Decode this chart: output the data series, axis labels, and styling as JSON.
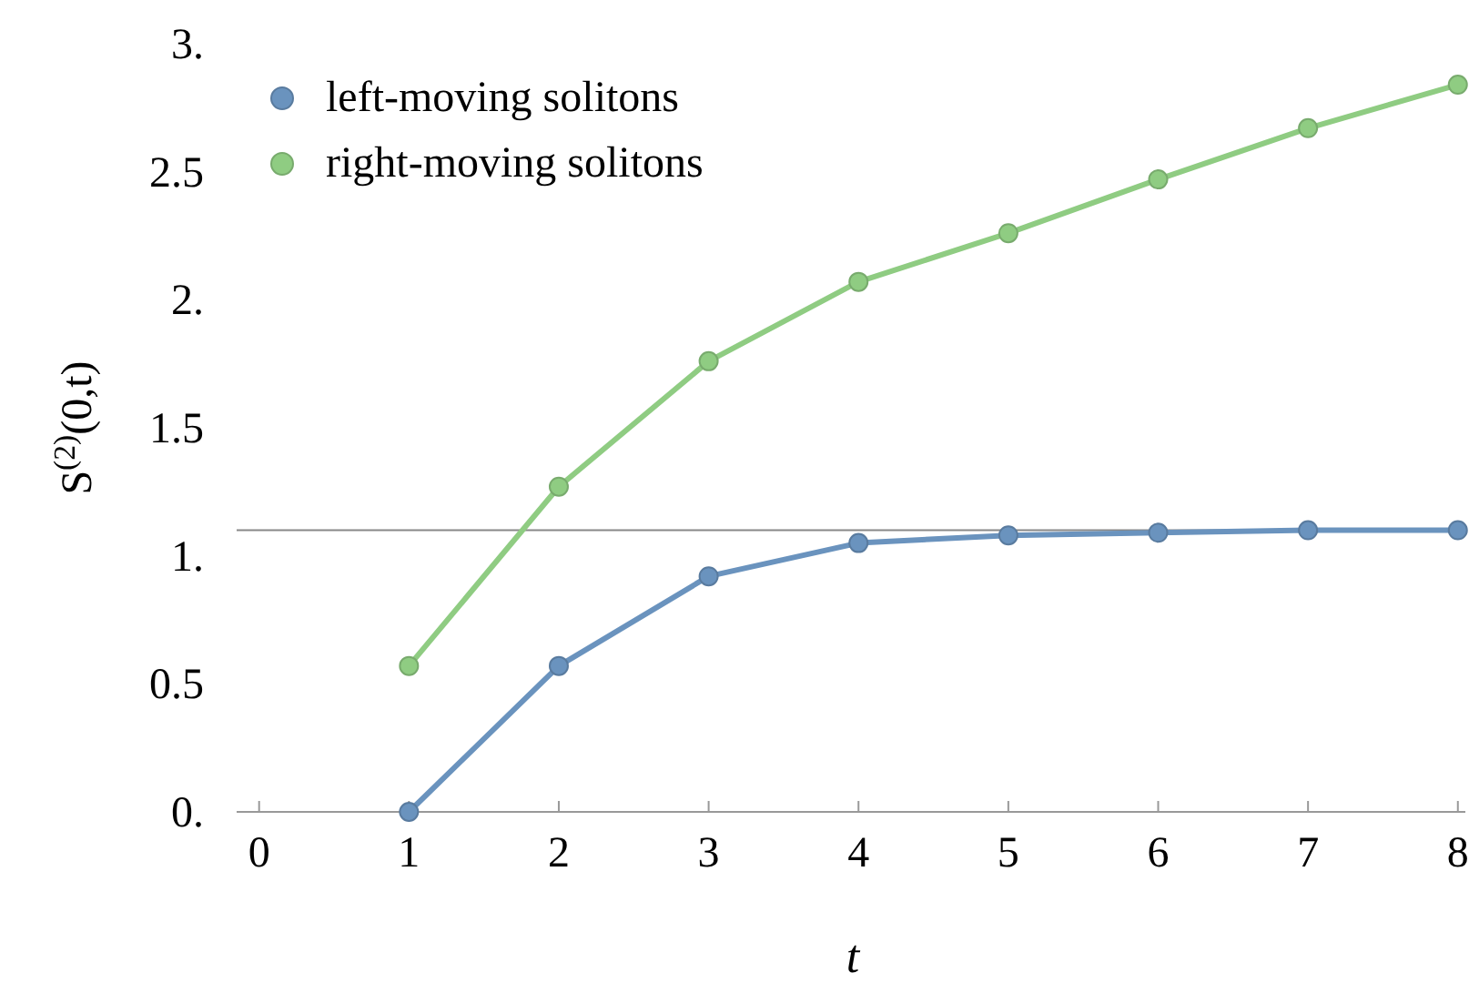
{
  "chart_data": {
    "type": "line",
    "xlabel": "t",
    "ylabel": "S$^{(2)}$(0,t)",
    "x": [
      1,
      2,
      3,
      4,
      5,
      6,
      7,
      8
    ],
    "series": [
      {
        "name": "left-moving solitons",
        "color": "#6a93be",
        "values": [
          0,
          0.57,
          0.92,
          1.05,
          1.08,
          1.09,
          1.1,
          1.1
        ]
      },
      {
        "name": "right-moving solitons",
        "color": "#8fcc82",
        "values": [
          0.57,
          1.27,
          1.76,
          2.07,
          2.26,
          2.47,
          2.67,
          2.84
        ]
      }
    ],
    "xlim": [
      -0.15,
      8.05
    ],
    "xticks": [
      0,
      1,
      2,
      3,
      4,
      5,
      6,
      7,
      8
    ],
    "ylim": [
      0,
      3
    ],
    "yticks": [
      {
        "value": 0,
        "label": "0."
      },
      0.5,
      {
        "value": 1,
        "label": "1."
      },
      1.5,
      {
        "value": 2,
        "label": "2."
      },
      2.5,
      {
        "value": 3,
        "label": "3."
      }
    ],
    "ref_lines": [
      {
        "axis": "y",
        "value": 1.1,
        "color": "#888888"
      }
    ],
    "marker": "circle",
    "line_style": "solid",
    "legend": "top left",
    "grid": false
  }
}
